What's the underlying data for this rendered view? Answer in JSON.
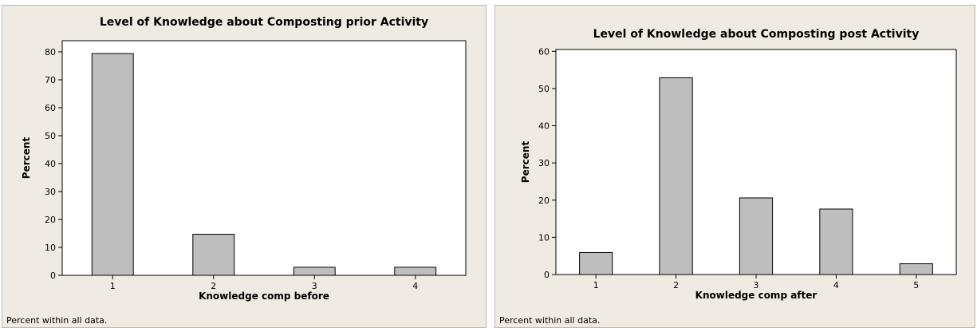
{
  "charts": [
    {
      "footnote": "Percent within all data.",
      "chart_data": {
        "type": "bar",
        "title": "Level of Knowledge about Composting prior Activity",
        "xlabel": "Knowledge comp before",
        "ylabel": "Percent",
        "categories": [
          "1",
          "2",
          "3",
          "4"
        ],
        "values": [
          79.4,
          14.7,
          2.9,
          2.9
        ],
        "ylim": [
          0,
          84
        ],
        "yticks": [
          0,
          10,
          20,
          30,
          40,
          50,
          60,
          70,
          80
        ],
        "grid": false,
        "bar_color": "#bebebe"
      }
    },
    {
      "footnote": "Percent within all data.",
      "chart_data": {
        "type": "bar",
        "title": "Level of Knowledge about Composting post Activity",
        "xlabel": "Knowledge comp after",
        "ylabel": "Percent",
        "categories": [
          "1",
          "2",
          "3",
          "4",
          "5"
        ],
        "values": [
          5.9,
          52.9,
          20.6,
          17.6,
          2.9
        ],
        "ylim": [
          0,
          60.5
        ],
        "yticks": [
          0,
          10,
          20,
          30,
          40,
          50,
          60
        ],
        "grid": false,
        "bar_color": "#bebebe"
      }
    }
  ]
}
